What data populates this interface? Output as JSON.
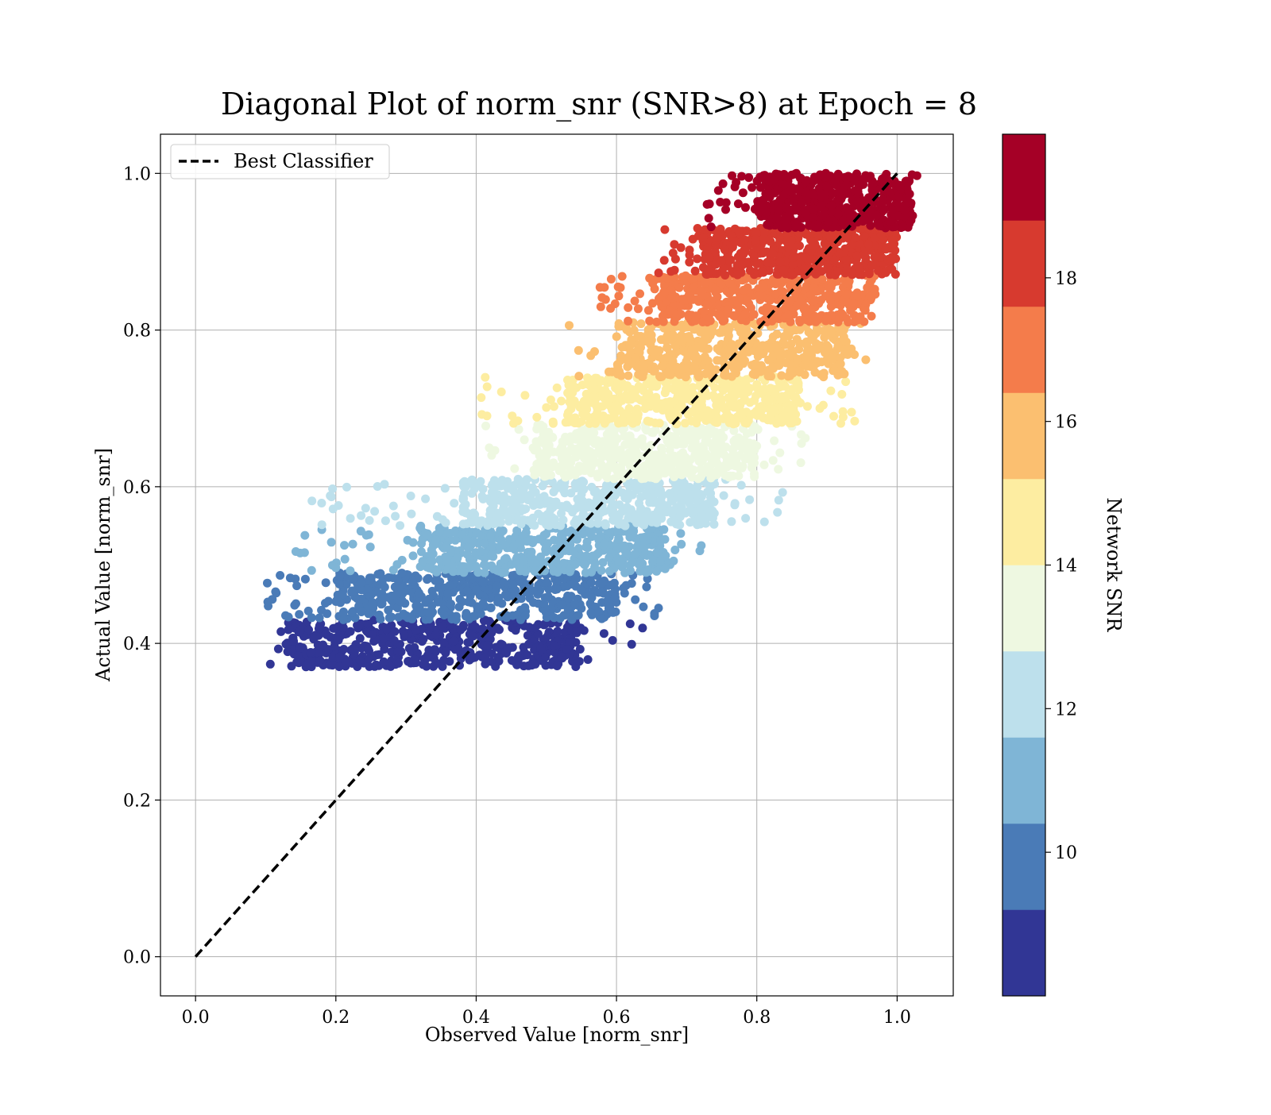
{
  "chart_data": {
    "type": "scatter",
    "title": "Diagonal Plot of norm_snr (SNR>8) at Epoch = 8",
    "xlabel": "Observed Value [norm_snr]",
    "ylabel": "Actual Value [norm_snr]",
    "xlim": [
      -0.05,
      1.08
    ],
    "ylim": [
      -0.05,
      1.05
    ],
    "x_ticks": [
      "0.0",
      "0.2",
      "0.4",
      "0.6",
      "0.8",
      "1.0"
    ],
    "x_tick_values": [
      0.0,
      0.2,
      0.4,
      0.6,
      0.8,
      1.0
    ],
    "y_ticks": [
      "0.0",
      "0.2",
      "0.4",
      "0.6",
      "0.8",
      "1.0"
    ],
    "y_tick_values": [
      0.0,
      0.2,
      0.4,
      0.6,
      0.8,
      1.0
    ],
    "grid": true,
    "legend": {
      "placement": "upper-left",
      "entries": [
        {
          "label": "Best Classifier",
          "style": "dashed",
          "color": "#000000"
        }
      ]
    },
    "reference_line": {
      "label": "Best Classifier",
      "x": [
        0.0,
        1.0
      ],
      "y": [
        0.0,
        1.0
      ],
      "color": "#000000",
      "style": "dashed"
    },
    "colorbar": {
      "label": "Network SNR",
      "range": [
        8.0,
        20.0
      ],
      "tick_labels": [
        "10",
        "12",
        "14",
        "16",
        "18"
      ],
      "tick_values": [
        10,
        12,
        14,
        16,
        18
      ],
      "colors": [
        "#313695",
        "#4a7bb7",
        "#7fb5d6",
        "#bde0ec",
        "#eef8e1",
        "#fdeda1",
        "#fbbf70",
        "#f47c4b",
        "#d73a2f",
        "#a50026"
      ]
    },
    "bands": [
      {
        "snr_range": [
          8.0,
          9.2
        ],
        "y_range": [
          0.37,
          0.43
        ],
        "x_core": [
          0.13,
          0.55
        ],
        "x_spread": [
          0.1,
          0.64
        ],
        "color": "#313695"
      },
      {
        "snr_range": [
          9.2,
          10.4
        ],
        "y_range": [
          0.43,
          0.49
        ],
        "x_core": [
          0.2,
          0.6
        ],
        "x_spread": [
          0.1,
          0.66
        ],
        "color": "#4a7bb7"
      },
      {
        "snr_range": [
          10.4,
          11.6
        ],
        "y_range": [
          0.49,
          0.55
        ],
        "x_core": [
          0.32,
          0.67
        ],
        "x_spread": [
          0.12,
          0.74
        ],
        "color": "#7fb5d6"
      },
      {
        "snr_range": [
          11.6,
          12.8
        ],
        "y_range": [
          0.55,
          0.61
        ],
        "x_core": [
          0.38,
          0.74
        ],
        "x_spread": [
          0.16,
          0.84
        ],
        "color": "#bde0ec"
      },
      {
        "snr_range": [
          12.8,
          14.0
        ],
        "y_range": [
          0.61,
          0.68
        ],
        "x_core": [
          0.48,
          0.8
        ],
        "x_spread": [
          0.4,
          0.87
        ],
        "color": "#eef8e1"
      },
      {
        "snr_range": [
          14.0,
          15.2
        ],
        "y_range": [
          0.68,
          0.74
        ],
        "x_core": [
          0.53,
          0.86
        ],
        "x_spread": [
          0.39,
          0.94
        ],
        "color": "#fdeda1"
      },
      {
        "snr_range": [
          15.2,
          16.4
        ],
        "y_range": [
          0.74,
          0.81
        ],
        "x_core": [
          0.6,
          0.93
        ],
        "x_spread": [
          0.53,
          0.97
        ],
        "color": "#fbbf70"
      },
      {
        "snr_range": [
          16.4,
          17.6
        ],
        "y_range": [
          0.81,
          0.87
        ],
        "x_core": [
          0.66,
          0.97
        ],
        "x_spread": [
          0.57,
          0.98
        ],
        "color": "#f47c4b"
      },
      {
        "snr_range": [
          17.6,
          18.8
        ],
        "y_range": [
          0.87,
          0.93
        ],
        "x_core": [
          0.72,
          1.0
        ],
        "x_spread": [
          0.66,
          1.0
        ],
        "color": "#d73a2f"
      },
      {
        "snr_range": [
          18.8,
          20.0
        ],
        "y_range": [
          0.93,
          1.0
        ],
        "x_core": [
          0.8,
          1.02
        ],
        "x_spread": [
          0.72,
          1.03
        ],
        "color": "#a50026"
      }
    ]
  }
}
